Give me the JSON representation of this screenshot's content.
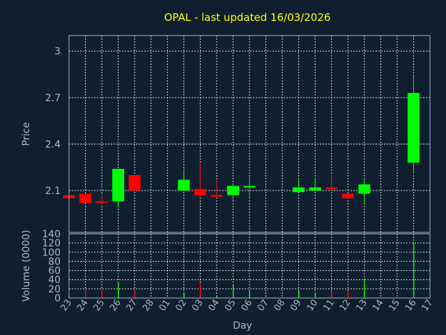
{
  "chart_data": [
    {
      "type": "candlestick",
      "title": "OPAL - last updated 16/03/2026",
      "xlabel": "Day",
      "ylabel": "Price",
      "ylim": [
        1.83,
        3.1
      ],
      "yticks": [
        "2.1",
        "2.4",
        "2.7",
        "3"
      ],
      "grid": true,
      "up_color": "#00ff00",
      "down_color": "#ff0000",
      "categories": [
        "23",
        "24",
        "25",
        "26",
        "27",
        "28",
        "01",
        "02",
        "03",
        "04",
        "05",
        "06",
        "07",
        "08",
        "09",
        "10",
        "11",
        "12",
        "13",
        "14",
        "15",
        "16",
        "17"
      ],
      "candles": [
        {
          "day": "23",
          "open": 2.07,
          "high": 2.07,
          "low": 2.05,
          "close": 2.05
        },
        {
          "day": "24",
          "open": 2.08,
          "high": 2.08,
          "low": 2.02,
          "close": 2.02
        },
        {
          "day": "25",
          "open": 2.03,
          "high": 2.08,
          "low": 2.01,
          "close": 2.02
        },
        {
          "day": "26",
          "open": 2.03,
          "high": 2.24,
          "low": 1.99,
          "close": 2.24
        },
        {
          "day": "27",
          "open": 2.2,
          "high": 2.2,
          "low": 2.1,
          "close": 2.1
        },
        {
          "day": "02",
          "open": 2.1,
          "high": 2.24,
          "low": 2.1,
          "close": 2.17
        },
        {
          "day": "03",
          "open": 2.11,
          "high": 2.27,
          "low": 2.06,
          "close": 2.07
        },
        {
          "day": "04",
          "open": 2.07,
          "high": 2.16,
          "low": 2.07,
          "close": 2.06
        },
        {
          "day": "05",
          "open": 2.07,
          "high": 2.14,
          "low": 2.04,
          "close": 2.13
        },
        {
          "day": "06",
          "open": 2.12,
          "high": 2.19,
          "low": 2.05,
          "close": 2.13
        },
        {
          "day": "09",
          "open": 2.09,
          "high": 2.17,
          "low": 2.09,
          "close": 2.12
        },
        {
          "day": "10",
          "open": 2.1,
          "high": 2.18,
          "low": 2.1,
          "close": 2.12
        },
        {
          "day": "11",
          "open": 2.12,
          "high": 2.2,
          "low": 2.1,
          "close": 2.11
        },
        {
          "day": "12",
          "open": 2.08,
          "high": 2.08,
          "low": 2.05,
          "close": 2.05
        },
        {
          "day": "13",
          "open": 2.08,
          "high": 2.18,
          "low": 2.02,
          "close": 2.14
        },
        {
          "day": "16",
          "open": 2.28,
          "high": 2.85,
          "low": 2.21,
          "close": 2.73
        }
      ]
    },
    {
      "type": "bar",
      "xlabel": "Day",
      "ylabel": "Volume (0000)",
      "ylim": [
        0,
        140
      ],
      "yticks": [
        "0",
        "20",
        "40",
        "60",
        "80",
        "100",
        "120",
        "140"
      ],
      "grid": true,
      "categories": [
        "23",
        "24",
        "25",
        "26",
        "27",
        "28",
        "01",
        "02",
        "03",
        "04",
        "05",
        "06",
        "07",
        "08",
        "09",
        "10",
        "11",
        "12",
        "13",
        "14",
        "15",
        "16",
        "17"
      ],
      "bars": [
        {
          "day": "24",
          "value": 20,
          "color": "#ff0000"
        },
        {
          "day": "25",
          "value": 18,
          "color": "#ff0000"
        },
        {
          "day": "26",
          "value": 34,
          "color": "#00ff00"
        },
        {
          "day": "27",
          "value": 17,
          "color": "#ff0000"
        },
        {
          "day": "02",
          "value": 11,
          "color": "#00ff00"
        },
        {
          "day": "03",
          "value": 33,
          "color": "#ff0000"
        },
        {
          "day": "04",
          "value": 6,
          "color": "#00ff00"
        },
        {
          "day": "05",
          "value": 30,
          "color": "#00ff00"
        },
        {
          "day": "06",
          "value": 15,
          "color": "#00ff00"
        },
        {
          "day": "09",
          "value": 15,
          "color": "#00ff00"
        },
        {
          "day": "10",
          "value": 12,
          "color": "#00ff00"
        },
        {
          "day": "11",
          "value": 16,
          "color": "#ff0000"
        },
        {
          "day": "12",
          "value": 14,
          "color": "#ff0000"
        },
        {
          "day": "13",
          "value": 39,
          "color": "#00ff00"
        },
        {
          "day": "16",
          "value": 121,
          "color": "#00ff00"
        }
      ]
    }
  ]
}
